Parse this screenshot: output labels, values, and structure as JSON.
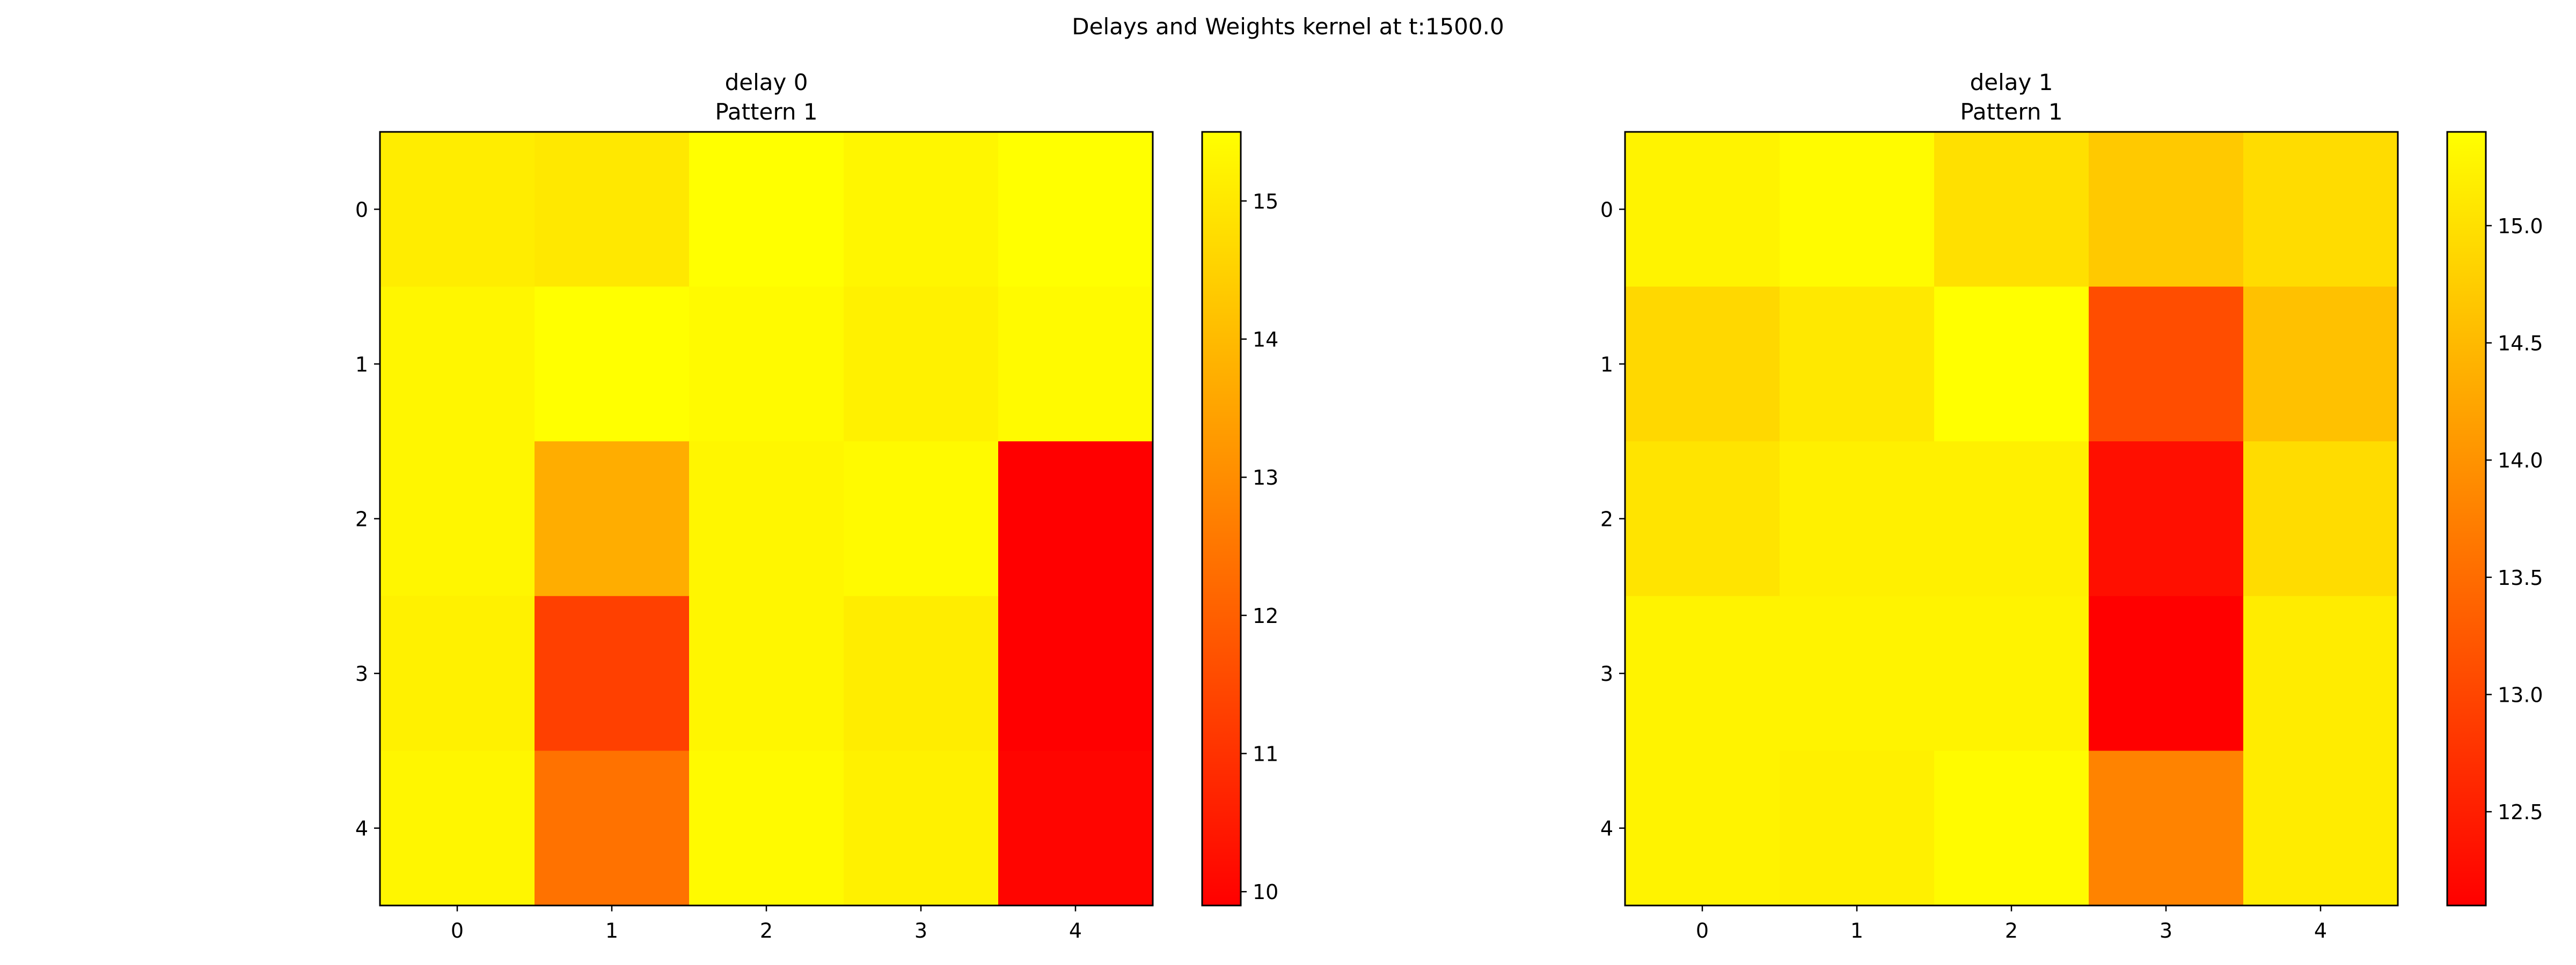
{
  "suptitle": "Delays and Weights kernel at t:1500.0",
  "colors": {
    "colormap": "autumn",
    "cmap_low": "#ff0000",
    "cmap_high": "#ffff00",
    "axis": "#000000",
    "background": "#ffffff"
  },
  "chart_data": [
    {
      "type": "heatmap",
      "title": "delay 0\nPattern 1",
      "title_lines": [
        "delay 0",
        "Pattern 1"
      ],
      "xlabel": "",
      "ylabel": "",
      "x_ticks": [
        "0",
        "1",
        "2",
        "3",
        "4"
      ],
      "y_ticks": [
        "0",
        "1",
        "2",
        "3",
        "4"
      ],
      "values": [
        [
          15.1,
          15.0,
          15.5,
          15.3,
          15.5
        ],
        [
          15.3,
          15.5,
          15.4,
          15.2,
          15.4
        ],
        [
          15.3,
          13.7,
          15.3,
          15.4,
          9.9
        ],
        [
          15.2,
          11.3,
          15.3,
          15.1,
          9.9
        ],
        [
          15.3,
          12.4,
          15.4,
          15.2,
          10.0
        ]
      ],
      "colorbar": {
        "range": [
          9.9,
          15.5
        ],
        "ticks": [
          10,
          11,
          12,
          13,
          14,
          15
        ],
        "tick_labels": [
          "10",
          "11",
          "12",
          "13",
          "14",
          "15"
        ]
      },
      "grid": false
    },
    {
      "type": "heatmap",
      "title": "delay 1\nPattern 1",
      "title_lines": [
        "delay 1",
        "Pattern 1"
      ],
      "xlabel": "",
      "ylabel": "",
      "x_ticks": [
        "0",
        "1",
        "2",
        "3",
        "4"
      ],
      "y_ticks": [
        "0",
        "1",
        "2",
        "3",
        "4"
      ],
      "values": [
        [
          15.25,
          15.35,
          15.0,
          14.7,
          14.95
        ],
        [
          14.9,
          15.1,
          15.4,
          13.1,
          14.6
        ],
        [
          15.05,
          15.2,
          15.2,
          12.3,
          14.95
        ],
        [
          15.25,
          15.25,
          15.25,
          12.1,
          15.15
        ],
        [
          15.25,
          15.2,
          15.35,
          13.8,
          15.15
        ]
      ],
      "colorbar": {
        "range": [
          12.1,
          15.4
        ],
        "ticks": [
          12.5,
          13.0,
          13.5,
          14.0,
          14.5,
          15.0
        ],
        "tick_labels": [
          "12.5",
          "13.0",
          "13.5",
          "14.0",
          "14.5",
          "15.0"
        ]
      },
      "grid": false
    }
  ]
}
